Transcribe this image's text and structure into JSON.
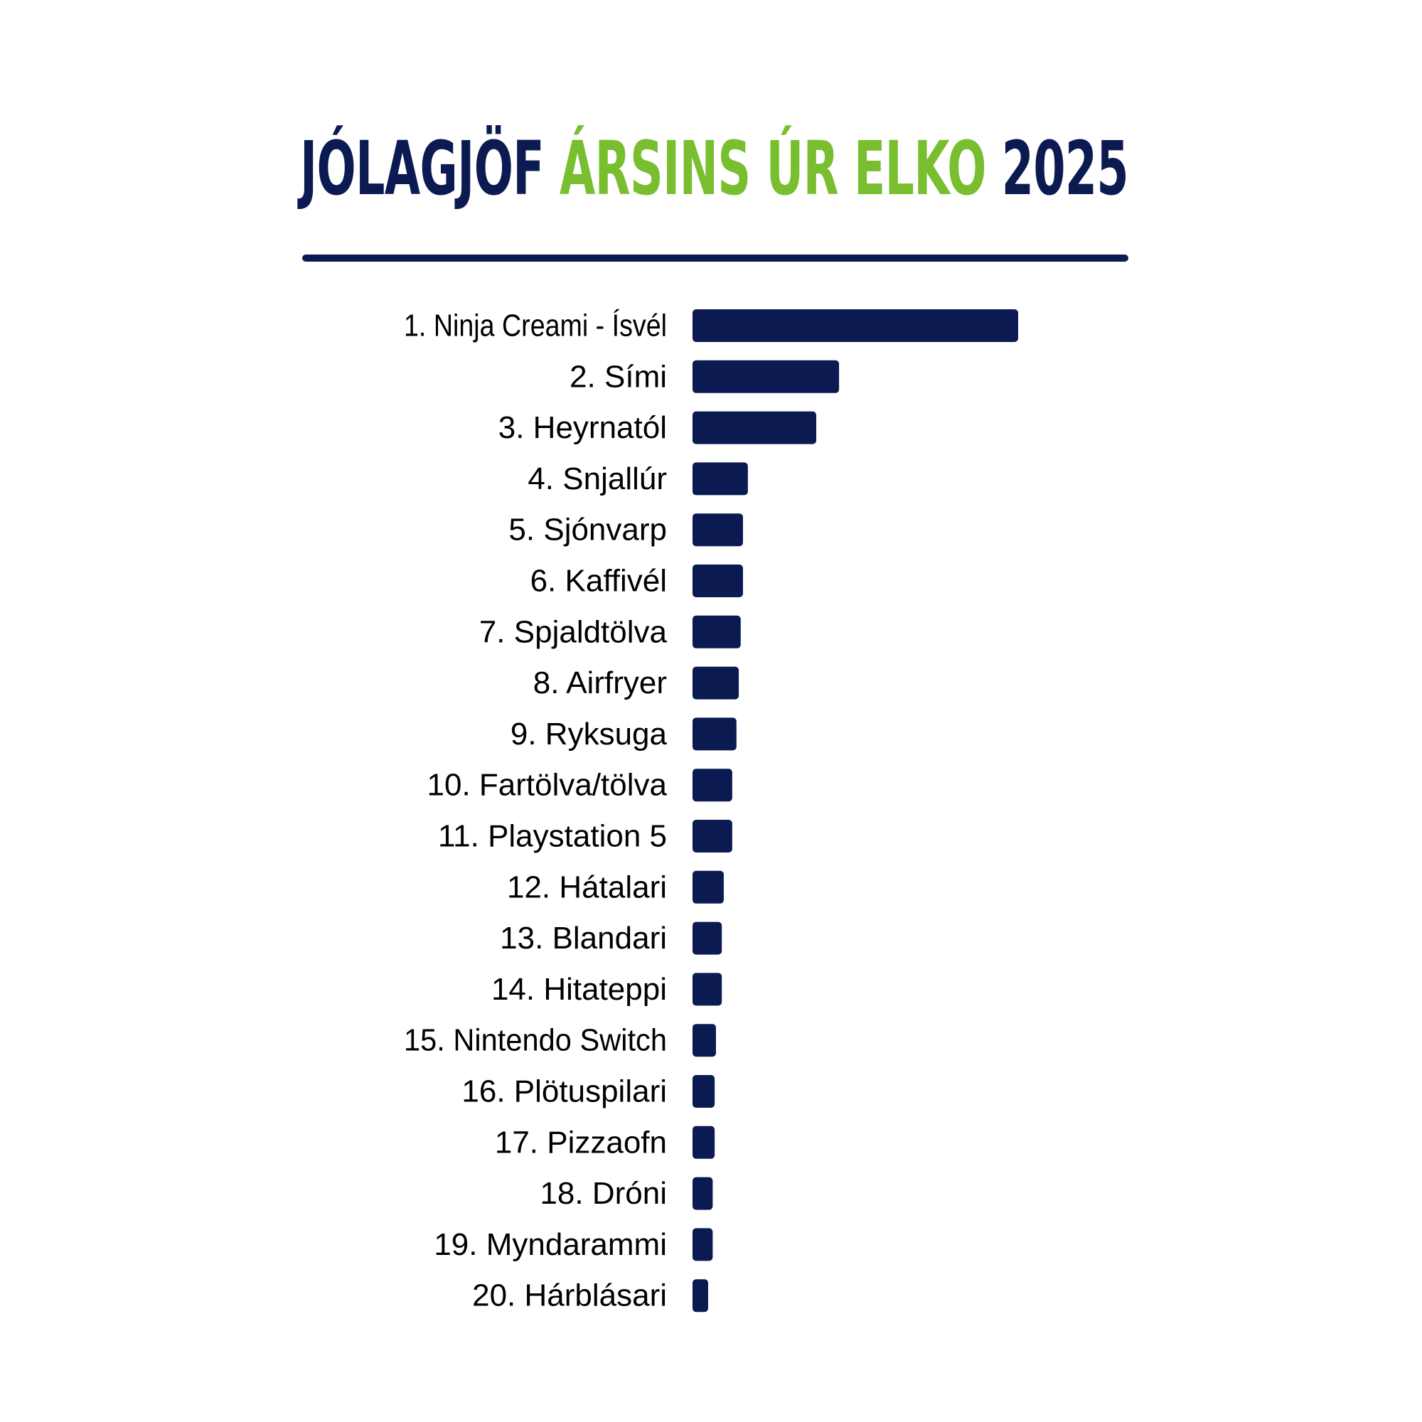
{
  "title": {
    "part1": "JÓLAGJÖF",
    "part2": "ÁRSINS ÚR ELKO",
    "part3": "2025"
  },
  "colors": {
    "navy": "#0c1a52",
    "green": "#78be2f",
    "label": "#000000"
  },
  "chart_data": {
    "type": "bar",
    "orientation": "horizontal",
    "title": "JÓLAGJÖF ÁRSINS ÚR ELKO 2025",
    "xlabel": "",
    "ylabel": "",
    "value_axis_shown": false,
    "grid": false,
    "legend": "none",
    "categories": [
      "1. Ninja Creami - Ísvél",
      "2. Sími",
      "3. Heyrnatól",
      "4. Snjallúr",
      "5. Sjónvarp",
      "6. Kaffivél",
      "7. Spjaldtölva",
      "8. Airfryer",
      "9. Ryksuga",
      "10. Fartölva/tölva",
      "11. Playstation 5",
      "12. Hátalari",
      "13. Blandari",
      "14. Hitateppi",
      "15. Nintendo Switch",
      "16. Plötuspilari",
      "17. Pizzaofn",
      "18. Dróni",
      "19. Myndarammi",
      "20. Hárblásari"
    ],
    "values": [
      100,
      45,
      38,
      17,
      15.5,
      15.5,
      14.8,
      14.2,
      13.5,
      12.2,
      12.2,
      9.6,
      9,
      9,
      7.2,
      6.8,
      6.8,
      6.2,
      6.2,
      4.8
    ],
    "xlim": [
      0,
      100
    ]
  }
}
